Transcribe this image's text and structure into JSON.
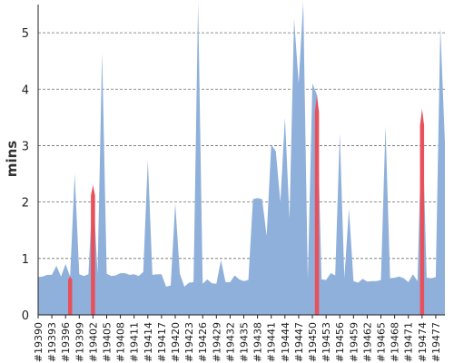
{
  "chart_data": {
    "type": "area",
    "title": "",
    "xlabel": "",
    "ylabel": "mins",
    "ylim": [
      0,
      5.5
    ],
    "yticks": [
      "0",
      "1",
      "2",
      "3",
      "4",
      "5"
    ],
    "grid": "horizontal dashed",
    "legend": "none",
    "colors": {
      "area": "#8fb0da",
      "highlight": "#e8505b"
    },
    "x_start": 19390,
    "x_end": 19479,
    "x_tick_labels": [
      "#19390",
      "#19393",
      "#19396",
      "#19399",
      "#19402",
      "#19405",
      "#19408",
      "#19411",
      "#19414",
      "#19417",
      "#19420",
      "#19423",
      "#19426",
      "#19429",
      "#19432",
      "#19435",
      "#19438",
      "#19441",
      "#19444",
      "#19447",
      "#19450",
      "#19453",
      "#19456",
      "#19459",
      "#19462",
      "#19465",
      "#19468",
      "#19471",
      "#19474",
      "#19477"
    ],
    "highlighted_builds": [
      19397,
      19402,
      19451,
      19474
    ],
    "series": [
      {
        "values": [
          0.67,
          0.68,
          0.71,
          0.71,
          0.87,
          0.68,
          0.9,
          0.68,
          2.5,
          0.72,
          0.69,
          0.72,
          2.3,
          0.73,
          4.65,
          0.73,
          0.69,
          0.7,
          0.74,
          0.74,
          0.71,
          0.72,
          0.69,
          0.76,
          2.75,
          0.71,
          0.72,
          0.72,
          0.5,
          0.52,
          1.98,
          0.73,
          0.5,
          0.57,
          0.58,
          5.55,
          0.55,
          0.63,
          0.56,
          0.55,
          0.97,
          0.58,
          0.58,
          0.7,
          0.63,
          0.6,
          0.62,
          2.05,
          2.07,
          2.05,
          1.4,
          3.02,
          2.9,
          2.0,
          3.5,
          1.7,
          5.25,
          4.1,
          5.55,
          0.62,
          4.1,
          3.9,
          0.63,
          0.62,
          0.74,
          0.7,
          3.22,
          0.65,
          1.88,
          0.6,
          0.57,
          0.64,
          0.59,
          0.6,
          0.6,
          0.62,
          3.35,
          0.65,
          0.66,
          0.68,
          0.65,
          0.58,
          0.72,
          0.6,
          3.65,
          0.66,
          0.65,
          0.67,
          5.1,
          3.05
        ]
      }
    ]
  }
}
